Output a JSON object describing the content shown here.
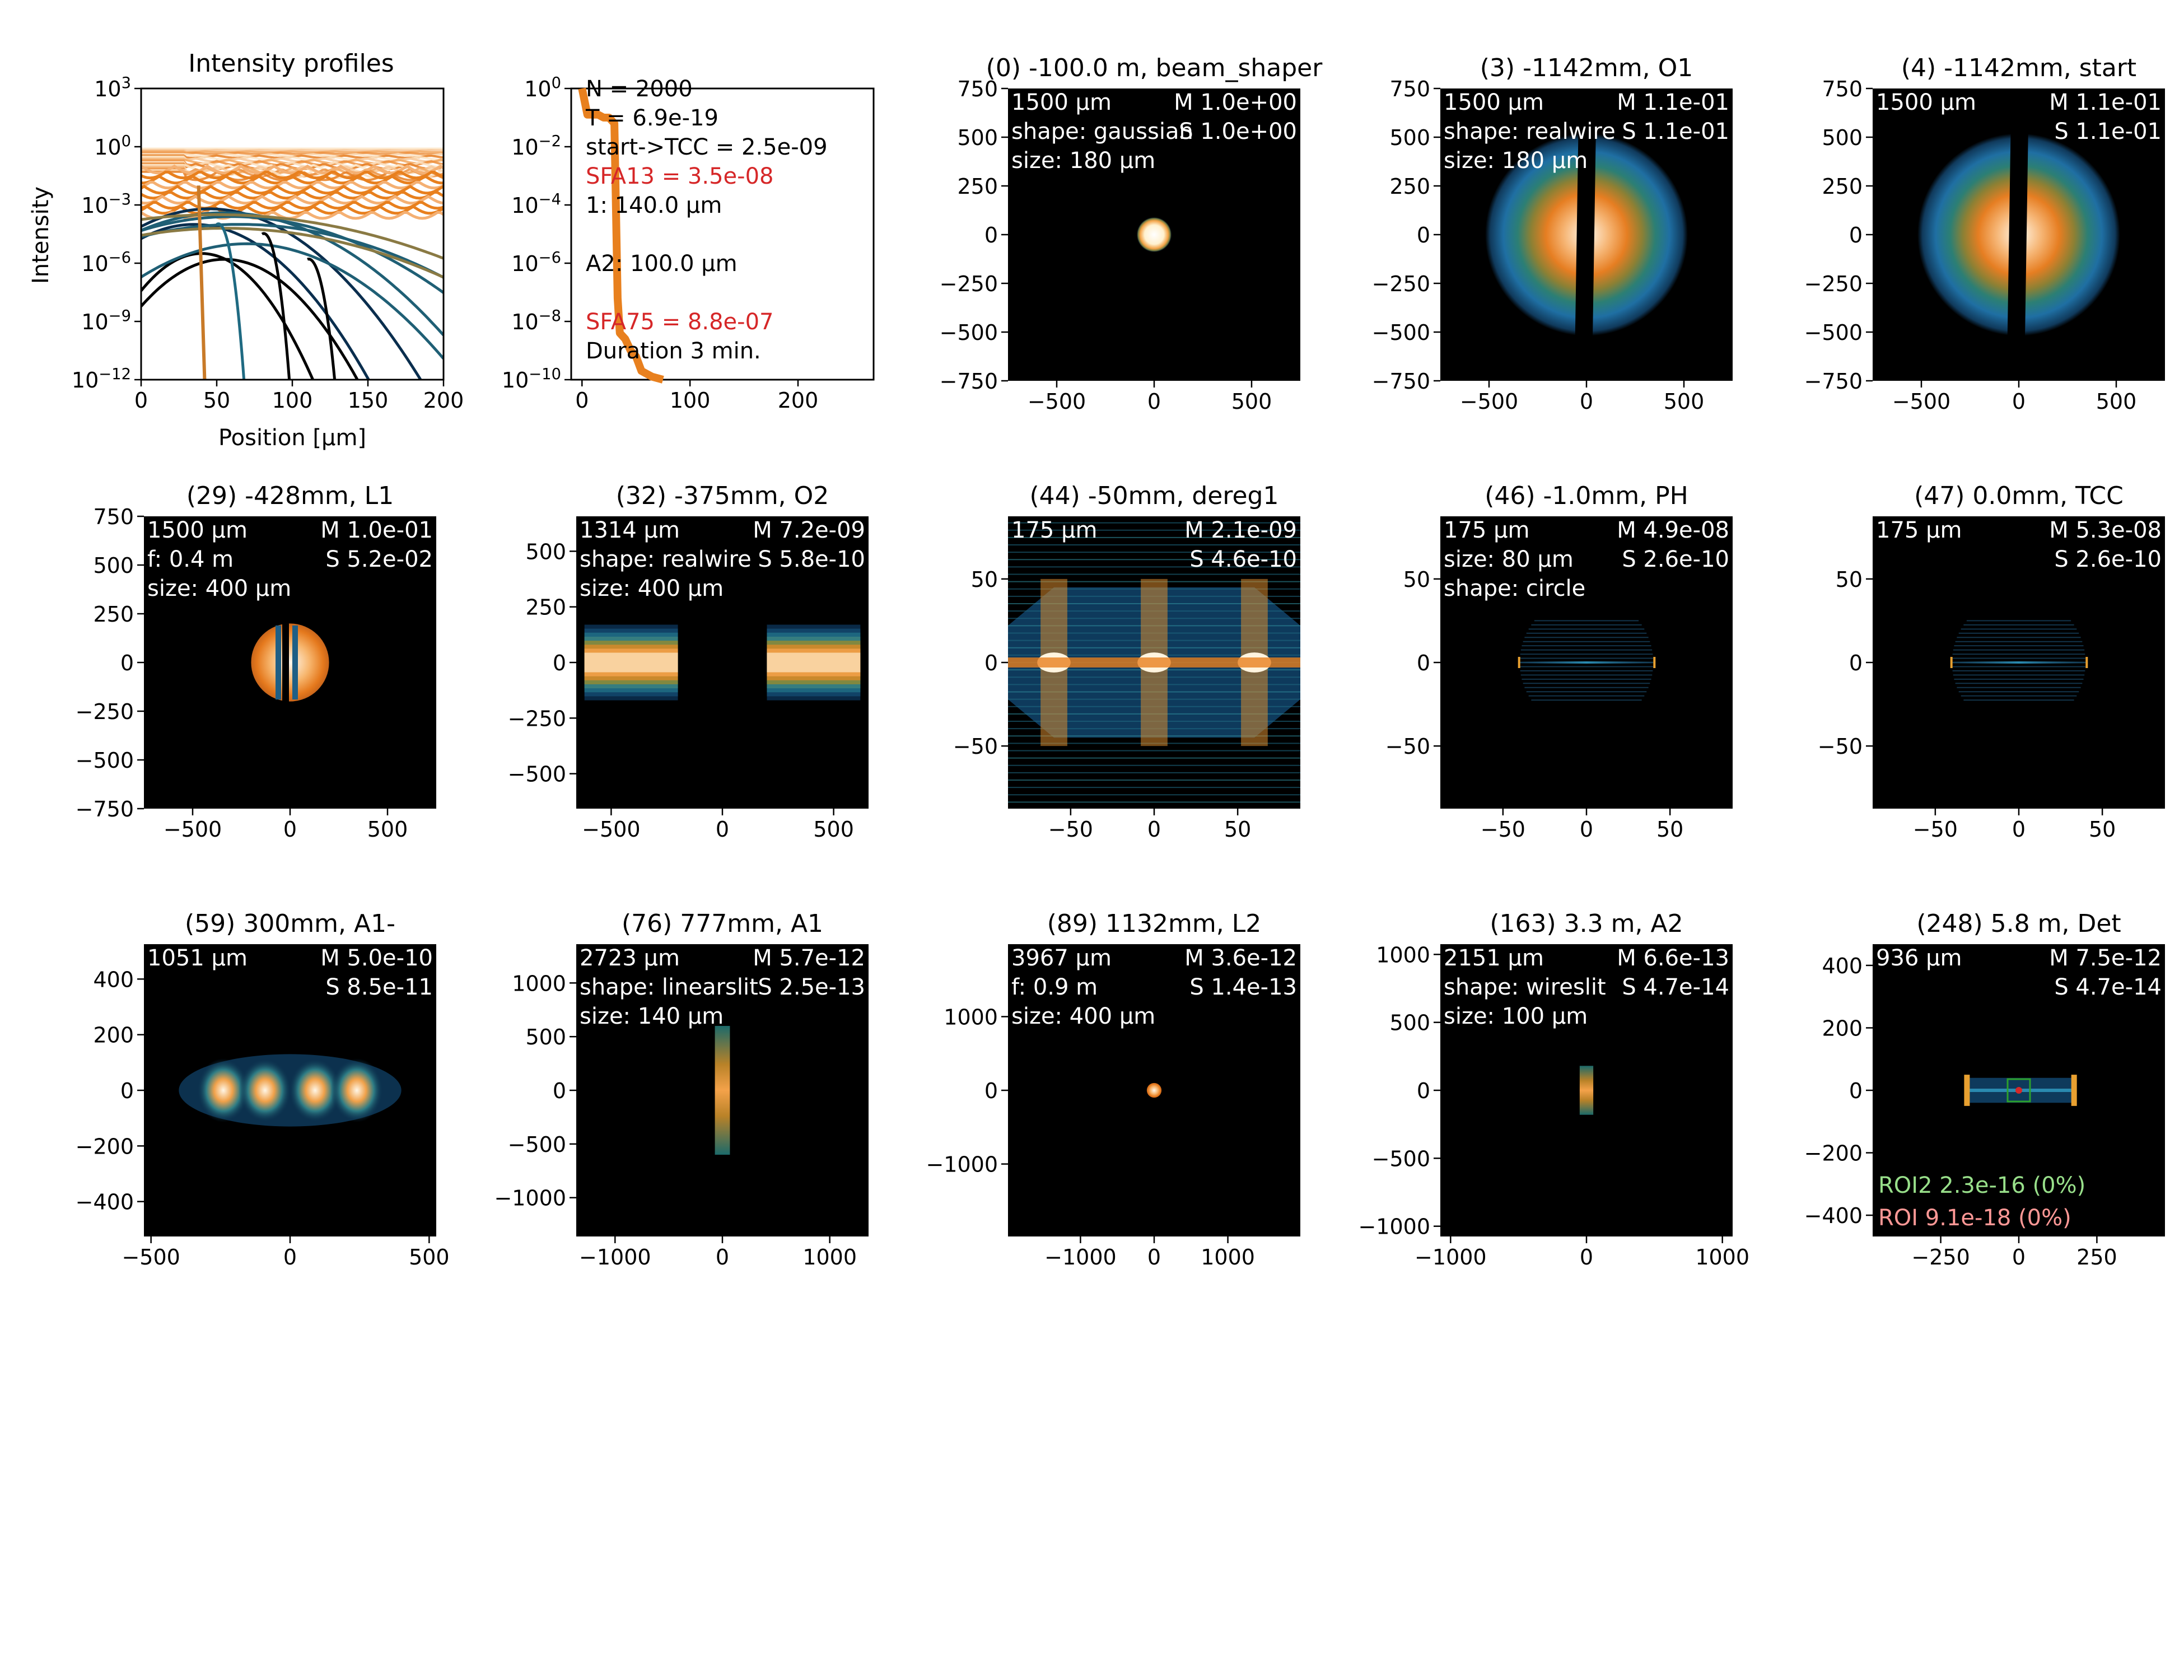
{
  "colors": {
    "beam_hot": "#fff6e0",
    "beam_orange": "#e8801e",
    "beam_teal": "#1f6a82",
    "beam_blue": "#0a2e4e",
    "panel_bg": "#000000",
    "label_white": "#ffffff",
    "label_red": "#d62728",
    "roi2": "#98df8a",
    "roi": "#ff9896",
    "roi_box": "#2ca02c"
  },
  "chart_data": [
    {
      "type": "line",
      "title": "Intensity profiles",
      "xlabel": "Position [µm]",
      "ylabel": "Intensity",
      "xlim": [
        0,
        200
      ],
      "ylim_exp": [
        -12,
        3
      ],
      "y_scale": "log",
      "xticks": [
        "0",
        "50",
        "100",
        "150",
        "200"
      ],
      "yticks": [
        {
          "base": "10",
          "exp": "3",
          "value_exp": 3
        },
        {
          "base": "10",
          "exp": "0",
          "value_exp": 0
        },
        {
          "base": "10",
          "exp": "−3",
          "value_exp": -3
        },
        {
          "base": "10",
          "exp": "−6",
          "value_exp": -6
        },
        {
          "base": "10",
          "exp": "−9",
          "value_exp": -9
        },
        {
          "base": "10",
          "exp": "−12",
          "value_exp": -12
        }
      ]
    },
    {
      "type": "line",
      "title": "",
      "xlim": [
        -10,
        270
      ],
      "ylim_exp": [
        -10,
        0
      ],
      "y_scale": "log",
      "xticks": [
        "0",
        "100",
        "200"
      ],
      "xtick_values": [
        0,
        100,
        200
      ],
      "yticks": [
        {
          "base": "10",
          "exp": "0",
          "value_exp": 0
        },
        {
          "base": "10",
          "exp": "−2",
          "value_exp": -2
        },
        {
          "base": "10",
          "exp": "−4",
          "value_exp": -4
        },
        {
          "base": "10",
          "exp": "−6",
          "value_exp": -6
        },
        {
          "base": "10",
          "exp": "−8",
          "value_exp": -8
        },
        {
          "base": "10",
          "exp": "−10",
          "value_exp": -10
        }
      ],
      "series": [
        {
          "x": [
            0,
            5,
            10,
            15,
            20,
            25,
            30,
            33,
            35,
            40,
            45,
            50,
            55,
            60,
            65,
            70,
            75
          ],
          "y_exp": [
            0,
            -0.9,
            -0.9,
            -0.9,
            -1.0,
            -1.0,
            -1.2,
            -7.2,
            -8.4,
            -8.6,
            -9.0,
            -9.2,
            -9.7,
            -9.8,
            -9.9,
            -9.95,
            -10
          ]
        }
      ],
      "annotations": [
        {
          "text": "N = 2000",
          "color": "black"
        },
        {
          "text": "T = 6.9e-19",
          "color": "black"
        },
        {
          "text": "start->TCC = 2.5e-09",
          "color": "black"
        },
        {
          "text": "SFA13 = 3.5e-08",
          "color": "red"
        },
        {
          "text": "1: 140.0 µm",
          "color": "black"
        },
        {
          "text": "",
          "color": "black"
        },
        {
          "text": "A2: 100.0 µm",
          "color": "black"
        },
        {
          "text": "",
          "color": "black"
        },
        {
          "text": "SFA75 = 8.8e-07",
          "color": "red"
        },
        {
          "text": "Duration 3 min.",
          "color": "black"
        }
      ]
    }
  ],
  "image_panels": [
    {
      "title": "(0) -100.0 m, beam_shaper",
      "range": 750,
      "xticks": [
        -500,
        0,
        500
      ],
      "yticks": [
        750,
        500,
        250,
        0,
        -250,
        -500,
        -750
      ],
      "left": [
        "1500 µm",
        "shape: gaussian",
        "size: 180 µm"
      ],
      "right": [
        "M 1.0e+00",
        "S 1.0e+00"
      ],
      "shape": "dot"
    },
    {
      "title": "(3) -1142mm, O1",
      "range": 750,
      "xticks": [
        -500,
        0,
        500
      ],
      "yticks": [
        750,
        500,
        250,
        0,
        -250,
        -500,
        -750
      ],
      "left": [
        "1500 µm",
        "shape: realwire",
        "size: 180 µm"
      ],
      "right": [
        "M 1.1e-01",
        "S 1.1e-01"
      ],
      "shape": "wire"
    },
    {
      "title": "(4) -1142mm, start",
      "range": 750,
      "xticks": [
        -500,
        0,
        500
      ],
      "yticks": [
        750,
        500,
        250,
        0,
        -250,
        -500,
        -750
      ],
      "left": [
        "1500 µm"
      ],
      "right": [
        "M 1.1e-01",
        "S 1.1e-01"
      ],
      "shape": "wire"
    },
    {
      "title": "(29) -428mm, L1",
      "range": 750,
      "xticks": [
        -500,
        0,
        500
      ],
      "yticks": [
        750,
        500,
        250,
        0,
        -250,
        -500,
        -750
      ],
      "left": [
        "1500 µm",
        "f: 0.4 m",
        "size: 400 µm"
      ],
      "right": [
        "M 1.0e-01",
        "S 5.2e-02"
      ],
      "shape": "smallwire"
    },
    {
      "title": "(32) -375mm, O2",
      "range": 657,
      "xticks": [
        -500,
        0,
        500
      ],
      "yticks": [
        500,
        250,
        0,
        -250,
        -500
      ],
      "left": [
        "1314 µm",
        "shape: realwire",
        "size: 400 µm"
      ],
      "right": [
        "M 7.2e-09",
        "S 5.8e-10"
      ],
      "shape": "split"
    },
    {
      "title": "(44) -50mm, dereg1",
      "range": 87.5,
      "xticks": [
        -50,
        0,
        50
      ],
      "yticks": [
        50,
        0,
        -50
      ],
      "left": [
        "175 µm"
      ],
      "right": [
        "M 2.1e-09",
        "S 4.6e-10"
      ],
      "shape": "hex"
    },
    {
      "title": "(46) -1.0mm, PH",
      "range": 87.5,
      "xticks": [
        -50,
        0,
        50
      ],
      "yticks": [
        50,
        0,
        -50
      ],
      "left": [
        "175 µm",
        "size: 80 µm",
        "shape: circle"
      ],
      "right": [
        "M 4.9e-08",
        "S 2.6e-10"
      ],
      "shape": "line"
    },
    {
      "title": "(47) 0.0mm, TCC",
      "range": 87.5,
      "xticks": [
        -50,
        0,
        50
      ],
      "yticks": [
        50,
        0,
        -50
      ],
      "left": [
        "175 µm"
      ],
      "right": [
        "M 5.3e-08",
        "S 2.6e-10"
      ],
      "shape": "line"
    },
    {
      "title": "(59) 300mm, A1-",
      "range": 525.5,
      "xticks": [
        -500,
        0,
        500
      ],
      "yticks": [
        400,
        200,
        0,
        -200,
        -400
      ],
      "left": [
        "1051 µm"
      ],
      "right": [
        "M 5.0e-10",
        "S 8.5e-11"
      ],
      "shape": "blobs"
    },
    {
      "title": "(76) 777mm, A1",
      "range": 1361.5,
      "xticks": [
        -1000,
        0,
        1000
      ],
      "yticks": [
        1000,
        500,
        0,
        -500,
        -1000
      ],
      "left": [
        "2723 µm",
        "shape: linearslit",
        "size: 140 µm"
      ],
      "right": [
        "M 5.7e-12",
        "S 2.5e-13"
      ],
      "shape": "vslit"
    },
    {
      "title": "(89) 1132mm, L2",
      "range": 1983.5,
      "xticks": [
        -1000,
        0,
        1000
      ],
      "yticks": [
        1000,
        0,
        -1000
      ],
      "left": [
        "3967 µm",
        "f: 0.9 m",
        "size: 400 µm"
      ],
      "right": [
        "M 3.6e-12",
        "S 1.4e-13"
      ],
      "shape": "smalldot"
    },
    {
      "title": "(163) 3.3 m, A2",
      "range": 1075.5,
      "xticks": [
        -1000,
        0,
        1000
      ],
      "yticks": [
        1000,
        500,
        0,
        -500,
        -1000
      ],
      "left": [
        "2151 µm",
        "shape: wireslit",
        "size: 100 µm"
      ],
      "right": [
        "M 6.6e-13",
        "S 4.7e-14"
      ],
      "shape": "shortslit"
    },
    {
      "title": "(248) 5.8 m, Det",
      "range": 468,
      "xticks": [
        -250,
        0,
        250
      ],
      "yticks": [
        400,
        200,
        0,
        -200,
        -400
      ],
      "left": [
        "936 µm"
      ],
      "right": [
        "M 7.5e-12",
        "S 4.7e-14"
      ],
      "shape": "det",
      "bottom": [
        {
          "text": "ROI2 2.3e-16 (0%)",
          "color": "#98df8a"
        },
        {
          "text": "ROI 9.1e-18 (0%)",
          "color": "#ff9896"
        }
      ]
    }
  ]
}
